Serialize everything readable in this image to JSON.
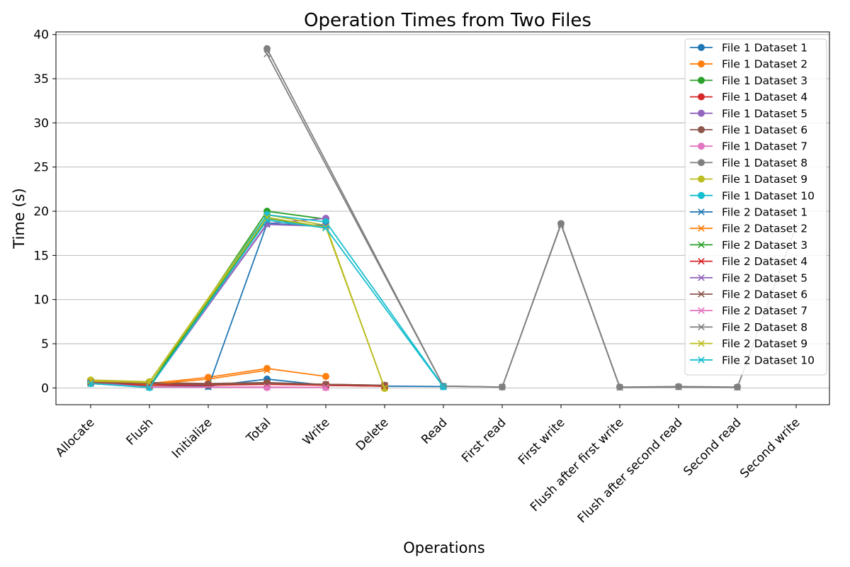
{
  "chart_data": {
    "type": "line",
    "title": "Operation Times from Two Files",
    "xlabel": "Operations",
    "ylabel": "Time (s)",
    "ylim": [
      -1.9,
      40.3
    ],
    "yticks": [
      0,
      5,
      10,
      15,
      20,
      25,
      30,
      35,
      40
    ],
    "grid": "y",
    "legend_position": "top-right",
    "categories": [
      "Allocate",
      "Flush",
      "Initialize",
      "Total",
      "Write",
      "Delete",
      "Read",
      "First read",
      "First write",
      "Flush after first write",
      "Flush after second read",
      "Second read",
      "Second write"
    ],
    "series": [
      {
        "name": "File 1 Dataset 1",
        "marker": "o",
        "color": "#1f77b4",
        "values": [
          0.6,
          0.3,
          0.2,
          1.0,
          0.3,
          0.2,
          0.15,
          null,
          null,
          null,
          null,
          null,
          null
        ]
      },
      {
        "name": "File 1 Dataset 2",
        "marker": "o",
        "color": "#ff7f0e",
        "values": [
          0.7,
          0.5,
          1.2,
          2.2,
          1.3,
          null,
          null,
          null,
          null,
          null,
          null,
          null,
          null
        ]
      },
      {
        "name": "File 1 Dataset 3",
        "marker": "o",
        "color": "#2ca02c",
        "values": [
          0.6,
          0.2,
          null,
          20.0,
          19.1,
          null,
          null,
          null,
          null,
          null,
          null,
          null,
          null
        ]
      },
      {
        "name": "File 1 Dataset 4",
        "marker": "o",
        "color": "#d62728",
        "values": [
          0.6,
          0.4,
          0.3,
          0.5,
          0.3,
          0.2,
          null,
          null,
          null,
          null,
          null,
          null,
          null
        ]
      },
      {
        "name": "File 1 Dataset 5",
        "marker": "o",
        "color": "#9467bd",
        "values": [
          0.6,
          0.1,
          null,
          18.6,
          19.2,
          null,
          null,
          null,
          null,
          null,
          null,
          null,
          null
        ]
      },
      {
        "name": "File 1 Dataset 6",
        "marker": "o",
        "color": "#8c564b",
        "values": [
          0.7,
          0.6,
          0.5,
          0.6,
          0.4,
          0.3,
          null,
          null,
          null,
          null,
          null,
          null,
          null
        ]
      },
      {
        "name": "File 1 Dataset 7",
        "marker": "o",
        "color": "#e377c2",
        "values": [
          0.5,
          0.1,
          null,
          0.05,
          0.05,
          null,
          null,
          null,
          null,
          null,
          null,
          null,
          null
        ]
      },
      {
        "name": "File 1 Dataset 8",
        "marker": "o",
        "color": "#7f7f7f",
        "values": [
          null,
          null,
          null,
          38.4,
          null,
          null,
          0.2,
          0.1,
          18.6,
          0.1,
          0.15,
          0.1,
          null
        ]
      },
      {
        "name": "File 1 Dataset 9",
        "marker": "o",
        "color": "#bcbd22",
        "values": [
          0.9,
          0.7,
          null,
          19.6,
          18.4,
          -0.05,
          null,
          null,
          null,
          null,
          null,
          null,
          null
        ]
      },
      {
        "name": "File 1 Dataset 10",
        "marker": "o",
        "color": "#17becf",
        "values": [
          0.5,
          0.05,
          null,
          19.6,
          18.8,
          null,
          0.15,
          null,
          null,
          null,
          null,
          null,
          null
        ]
      },
      {
        "name": "File 2 Dataset 1",
        "marker": "x",
        "color": "#1f77b4",
        "values": [
          0.5,
          0.1,
          0.1,
          18.6,
          18.4,
          null,
          null,
          null,
          null,
          null,
          null,
          null,
          null
        ]
      },
      {
        "name": "File 2 Dataset 2",
        "marker": "x",
        "color": "#ff7f0e",
        "values": [
          0.7,
          0.4,
          1.0,
          2.0,
          null,
          null,
          null,
          null,
          null,
          null,
          null,
          null,
          null
        ]
      },
      {
        "name": "File 2 Dataset 3",
        "marker": "x",
        "color": "#2ca02c",
        "values": [
          0.6,
          0.2,
          null,
          19.2,
          18.2,
          null,
          null,
          null,
          null,
          null,
          null,
          null,
          null
        ]
      },
      {
        "name": "File 2 Dataset 4",
        "marker": "x",
        "color": "#d62728",
        "values": [
          0.6,
          0.3,
          0.3,
          0.4,
          0.3,
          0.2,
          null,
          null,
          null,
          null,
          null,
          null,
          null
        ]
      },
      {
        "name": "File 2 Dataset 5",
        "marker": "x",
        "color": "#9467bd",
        "values": [
          0.6,
          0.1,
          null,
          18.5,
          18.3,
          null,
          null,
          null,
          null,
          null,
          null,
          null,
          null
        ]
      },
      {
        "name": "File 2 Dataset 6",
        "marker": "x",
        "color": "#8c564b",
        "values": [
          0.6,
          0.5,
          0.4,
          0.5,
          0.4,
          0.3,
          null,
          null,
          null,
          null,
          null,
          null,
          null
        ]
      },
      {
        "name": "File 2 Dataset 7",
        "marker": "x",
        "color": "#e377c2",
        "values": [
          0.5,
          0.1,
          null,
          0.1,
          0.05,
          null,
          null,
          null,
          null,
          null,
          null,
          null,
          null
        ]
      },
      {
        "name": "File 2 Dataset 8",
        "marker": "x",
        "color": "#7f7f7f",
        "values": [
          null,
          null,
          null,
          37.8,
          null,
          null,
          0.2,
          0.1,
          18.5,
          0.05,
          0.1,
          0.05,
          18.3
        ]
      },
      {
        "name": "File 2 Dataset 9",
        "marker": "x",
        "color": "#bcbd22",
        "values": [
          0.8,
          0.6,
          null,
          19.3,
          18.2,
          0.0,
          null,
          null,
          null,
          null,
          null,
          null,
          null
        ]
      },
      {
        "name": "File 2 Dataset 10",
        "marker": "x",
        "color": "#17becf",
        "values": [
          0.5,
          0.05,
          null,
          19.0,
          18.1,
          null,
          0.1,
          null,
          null,
          null,
          null,
          null,
          null
        ]
      }
    ]
  }
}
